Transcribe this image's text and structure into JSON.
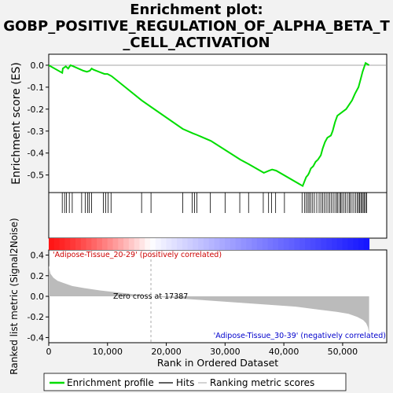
{
  "title_lines": [
    "Enrichment plot:",
    "GOBP_POSITIVE_REGULATION_OF_ALPHA_BETA_T",
    "_CELL_ACTIVATION"
  ],
  "colors": {
    "enrichment_line": "#00dd00",
    "hits": "#000000",
    "metric_fill": "#bbbbbb",
    "zero_cross_line": "#aaaaaa",
    "positive_label": "#cc0000",
    "negative_label": "#0000cc",
    "background": "#f2f2f2",
    "plot_background": "#ffffff"
  },
  "chart_data": {
    "type": "line",
    "xlabel": "Rank in Ordered Dataset",
    "x_ticks": [
      {
        "value": 0,
        "label": "0"
      },
      {
        "value": 10000,
        "label": "10,000"
      },
      {
        "value": 20000,
        "label": "20,000"
      },
      {
        "value": 30000,
        "label": "30,000"
      },
      {
        "value": 40000,
        "label": "40,000"
      },
      {
        "value": 50000,
        "label": "50,000"
      }
    ],
    "xlim": [
      0,
      57500
    ],
    "total_genes": 54500,
    "es_panel": {
      "ylabel": "Enrichment score (ES)",
      "ylim": [
        -0.58,
        0.05
      ],
      "y_ticks": [
        {
          "value": 0.0,
          "label": "0.0"
        },
        {
          "value": -0.1,
          "label": "-0.1"
        },
        {
          "value": -0.2,
          "label": "-0.2"
        },
        {
          "value": -0.3,
          "label": "-0.3"
        },
        {
          "value": -0.4,
          "label": "-0.4"
        },
        {
          "value": -0.5,
          "label": "-0.5"
        }
      ],
      "series": [
        {
          "name": "Enrichment profile",
          "x": [
            0,
            2300,
            2400,
            2900,
            3300,
            3700,
            4200,
            5900,
            6500,
            7000,
            7300,
            7600,
            9500,
            10000,
            10700,
            15800,
            17400,
            22800,
            24500,
            25000,
            27600,
            32600,
            34000,
            36600,
            37500,
            38000,
            38700,
            43200,
            43800,
            44100,
            44300,
            44600,
            45000,
            45400,
            45800,
            46300,
            46600,
            47000,
            47400,
            48000,
            48300,
            48700,
            49100,
            49600,
            50100,
            50600,
            51100,
            51600,
            52100,
            52700,
            53100,
            53400,
            53900,
            54500
          ],
          "y": [
            0.0,
            -0.035,
            -0.015,
            -0.005,
            -0.015,
            0.0,
            -0.005,
            -0.025,
            -0.03,
            -0.025,
            -0.015,
            -0.02,
            -0.04,
            -0.04,
            -0.05,
            -0.16,
            -0.19,
            -0.29,
            -0.31,
            -0.315,
            -0.345,
            -0.43,
            -0.45,
            -0.49,
            -0.48,
            -0.475,
            -0.48,
            -0.55,
            -0.51,
            -0.5,
            -0.49,
            -0.47,
            -0.46,
            -0.44,
            -0.43,
            -0.41,
            -0.38,
            -0.35,
            -0.33,
            -0.32,
            -0.3,
            -0.26,
            -0.23,
            -0.22,
            -0.21,
            -0.2,
            -0.18,
            -0.16,
            -0.13,
            -0.1,
            -0.06,
            -0.03,
            0.01,
            0.0
          ]
        }
      ]
    },
    "hits": [
      2300,
      2700,
      3000,
      3500,
      4000,
      5600,
      6200,
      6600,
      6900,
      7300,
      9300,
      9700,
      10100,
      10600,
      15800,
      17400,
      22800,
      24400,
      24800,
      25200,
      27500,
      30000,
      32500,
      34000,
      36500,
      37400,
      37900,
      38600,
      40100,
      43100,
      43500,
      43800,
      44100,
      44300,
      44600,
      44900,
      45200,
      45600,
      46000,
      46300,
      46600,
      46900,
      47200,
      47500,
      47800,
      48100,
      48400,
      48700,
      49000,
      49200,
      49500,
      49700,
      49900,
      50200,
      50500,
      50800,
      51100,
      51300,
      51600,
      51900,
      52200,
      52500,
      52700,
      52900,
      53100,
      53300,
      53500,
      53700,
      53900,
      54100
    ],
    "metric_panel": {
      "ylabel": "Ranked list metric (Signal2Noise)",
      "ylim": [
        -0.45,
        0.45
      ],
      "y_ticks": [
        {
          "value": 0.4,
          "label": "0.4"
        },
        {
          "value": 0.2,
          "label": "0.2"
        },
        {
          "value": 0.0,
          "label": "0.0"
        },
        {
          "value": -0.2,
          "label": "-0.2"
        },
        {
          "value": -0.4,
          "label": "-0.4"
        }
      ],
      "series": [
        {
          "name": "Ranking metric scores",
          "x": [
            0,
            300,
            800,
            1500,
            2500,
            4000,
            6000,
            9000,
            13000,
            17387,
            22000,
            27000,
            32000,
            37000,
            42000,
            46000,
            49000,
            51000,
            52500,
            53500,
            54000,
            54300,
            54500
          ],
          "y": [
            0.3,
            0.22,
            0.18,
            0.15,
            0.13,
            0.1,
            0.08,
            0.055,
            0.03,
            0.0,
            -0.02,
            -0.04,
            -0.06,
            -0.08,
            -0.1,
            -0.13,
            -0.15,
            -0.17,
            -0.2,
            -0.23,
            -0.26,
            -0.3,
            -0.36
          ]
        }
      ],
      "zero_cross": 17387,
      "zero_cross_label": "Zero cross at 17387",
      "positive_label": "'Adipose-Tissue_20-29' (positively correlated)",
      "negative_label": "'Adipose-Tissue_30-39' (negatively correlated)"
    },
    "legend": {
      "position": "bottom",
      "items": [
        {
          "label": "Enrichment profile",
          "style": "green-line"
        },
        {
          "label": "Hits",
          "style": "black-line"
        },
        {
          "label": "Ranking metric scores",
          "style": "gray-line"
        }
      ]
    }
  }
}
